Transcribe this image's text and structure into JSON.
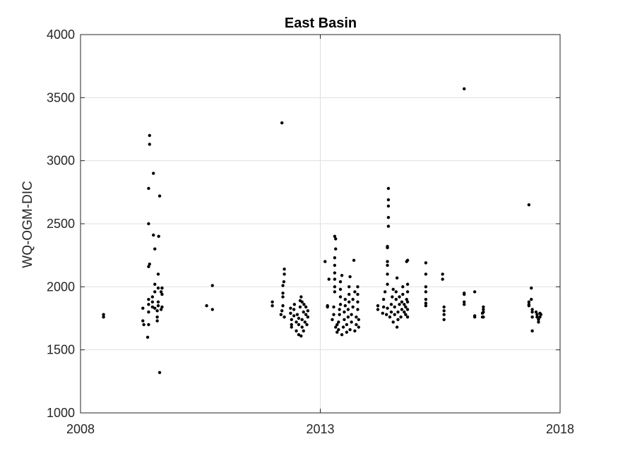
{
  "chart_data": {
    "type": "scatter",
    "title": "East Basin",
    "xlabel": "",
    "ylabel": "WQ-OGM-DIC",
    "xlim": [
      2008,
      2018
    ],
    "ylim": [
      1000,
      4000
    ],
    "xticks": [
      2008,
      2013,
      2018
    ],
    "yticks": [
      1000,
      1500,
      2000,
      2500,
      3000,
      3500,
      4000
    ],
    "grid": true,
    "marker_color": "#000000",
    "points": [
      [
        2008.48,
        1760
      ],
      [
        2008.48,
        1780
      ],
      [
        2009.3,
        1830
      ],
      [
        2009.3,
        1730
      ],
      [
        2009.32,
        1700
      ],
      [
        2009.4,
        1600
      ],
      [
        2009.42,
        1700
      ],
      [
        2009.42,
        1800
      ],
      [
        2009.42,
        1860
      ],
      [
        2009.42,
        1900
      ],
      [
        2009.42,
        2500
      ],
      [
        2009.42,
        2780
      ],
      [
        2009.42,
        2160
      ],
      [
        2009.44,
        2180
      ],
      [
        2009.44,
        3130
      ],
      [
        2009.44,
        3200
      ],
      [
        2009.5,
        1840
      ],
      [
        2009.5,
        1880
      ],
      [
        2009.5,
        1920
      ],
      [
        2009.52,
        2410
      ],
      [
        2009.52,
        2900
      ],
      [
        2009.55,
        1830
      ],
      [
        2009.55,
        1960
      ],
      [
        2009.55,
        2020
      ],
      [
        2009.55,
        2300
      ],
      [
        2009.6,
        1730
      ],
      [
        2009.6,
        1760
      ],
      [
        2009.6,
        1810
      ],
      [
        2009.62,
        1850
      ],
      [
        2009.62,
        1880
      ],
      [
        2009.62,
        1990
      ],
      [
        2009.62,
        2100
      ],
      [
        2009.63,
        2400
      ],
      [
        2009.65,
        2720
      ],
      [
        2009.65,
        1320
      ],
      [
        2009.68,
        1820
      ],
      [
        2009.68,
        1960
      ],
      [
        2009.7,
        1840
      ],
      [
        2009.7,
        1940
      ],
      [
        2009.7,
        1990
      ],
      [
        2009.7,
        1990
      ],
      [
        2010.63,
        1850
      ],
      [
        2010.75,
        1820
      ],
      [
        2010.75,
        2010
      ],
      [
        2012.0,
        1850
      ],
      [
        2012.0,
        1880
      ],
      [
        2012.2,
        3300
      ],
      [
        2012.18,
        1780
      ],
      [
        2012.2,
        1810
      ],
      [
        2012.22,
        1850
      ],
      [
        2012.22,
        1920
      ],
      [
        2012.22,
        1950
      ],
      [
        2012.22,
        2010
      ],
      [
        2012.24,
        2040
      ],
      [
        2012.25,
        2100
      ],
      [
        2012.25,
        2140
      ],
      [
        2012.25,
        1760
      ],
      [
        2012.38,
        1790
      ],
      [
        2012.38,
        1830
      ],
      [
        2012.4,
        1740
      ],
      [
        2012.4,
        1700
      ],
      [
        2012.4,
        1680
      ],
      [
        2012.45,
        1770
      ],
      [
        2012.45,
        1820
      ],
      [
        2012.46,
        1860
      ],
      [
        2012.5,
        1650
      ],
      [
        2012.5,
        1720
      ],
      [
        2012.52,
        1780
      ],
      [
        2012.55,
        1620
      ],
      [
        2012.55,
        1700
      ],
      [
        2012.55,
        1750
      ],
      [
        2012.58,
        1840
      ],
      [
        2012.58,
        1890
      ],
      [
        2012.6,
        1610
      ],
      [
        2012.62,
        1680
      ],
      [
        2012.62,
        1740
      ],
      [
        2012.65,
        1800
      ],
      [
        2012.65,
        1650
      ],
      [
        2012.68,
        1720
      ],
      [
        2012.7,
        1780
      ],
      [
        2012.72,
        1700
      ],
      [
        2012.74,
        1760
      ],
      [
        2012.74,
        1810
      ],
      [
        2012.6,
        1920
      ],
      [
        2012.62,
        1880
      ],
      [
        2012.66,
        1860
      ],
      [
        2012.7,
        1840
      ],
      [
        2013.1,
        2200
      ],
      [
        2013.15,
        1850
      ],
      [
        2013.15,
        1840
      ],
      [
        2013.18,
        2060
      ],
      [
        2013.25,
        1740
      ],
      [
        2013.28,
        1780
      ],
      [
        2013.28,
        1840
      ],
      [
        2013.3,
        1960
      ],
      [
        2013.3,
        2000
      ],
      [
        2013.3,
        2060
      ],
      [
        2013.3,
        2110
      ],
      [
        2013.3,
        2170
      ],
      [
        2013.3,
        2230
      ],
      [
        2013.3,
        2400
      ],
      [
        2013.32,
        2380
      ],
      [
        2013.32,
        2300
      ],
      [
        2013.32,
        1680
      ],
      [
        2013.35,
        1700
      ],
      [
        2013.35,
        1640
      ],
      [
        2013.38,
        1660
      ],
      [
        2013.38,
        1720
      ],
      [
        2013.4,
        1780
      ],
      [
        2013.4,
        1820
      ],
      [
        2013.42,
        1860
      ],
      [
        2013.42,
        1920
      ],
      [
        2013.42,
        1980
      ],
      [
        2013.42,
        2040
      ],
      [
        2013.45,
        2090
      ],
      [
        2013.45,
        1620
      ],
      [
        2013.48,
        1680
      ],
      [
        2013.5,
        1740
      ],
      [
        2013.5,
        1800
      ],
      [
        2013.52,
        1850
      ],
      [
        2013.52,
        1900
      ],
      [
        2013.55,
        1640
      ],
      [
        2013.55,
        1700
      ],
      [
        2013.58,
        1760
      ],
      [
        2013.58,
        1820
      ],
      [
        2013.6,
        1880
      ],
      [
        2013.6,
        1940
      ],
      [
        2013.6,
        2000
      ],
      [
        2013.62,
        2080
      ],
      [
        2013.62,
        1660
      ],
      [
        2013.65,
        1720
      ],
      [
        2013.65,
        1780
      ],
      [
        2013.68,
        1840
      ],
      [
        2013.68,
        1900
      ],
      [
        2013.7,
        2210
      ],
      [
        2013.72,
        1960
      ],
      [
        2013.72,
        1650
      ],
      [
        2013.75,
        1700
      ],
      [
        2013.75,
        1760
      ],
      [
        2013.78,
        1820
      ],
      [
        2013.78,
        1880
      ],
      [
        2013.78,
        1940
      ],
      [
        2013.78,
        2000
      ],
      [
        2013.8,
        1680
      ],
      [
        2013.8,
        1740
      ],
      [
        2014.2,
        1820
      ],
      [
        2014.2,
        1850
      ],
      [
        2014.3,
        1790
      ],
      [
        2014.32,
        1840
      ],
      [
        2014.32,
        1900
      ],
      [
        2014.35,
        1960
      ],
      [
        2014.38,
        1780
      ],
      [
        2014.4,
        1830
      ],
      [
        2014.4,
        2020
      ],
      [
        2014.4,
        2100
      ],
      [
        2014.4,
        2170
      ],
      [
        2014.4,
        2200
      ],
      [
        2014.4,
        2310
      ],
      [
        2014.4,
        2320
      ],
      [
        2014.42,
        2480
      ],
      [
        2014.42,
        2550
      ],
      [
        2014.42,
        2640
      ],
      [
        2014.42,
        2690
      ],
      [
        2014.42,
        2780
      ],
      [
        2014.45,
        1760
      ],
      [
        2014.48,
        1800
      ],
      [
        2014.48,
        1860
      ],
      [
        2014.5,
        1920
      ],
      [
        2014.52,
        1980
      ],
      [
        2014.52,
        1720
      ],
      [
        2014.55,
        1780
      ],
      [
        2014.55,
        1840
      ],
      [
        2014.58,
        1900
      ],
      [
        2014.58,
        1960
      ],
      [
        2014.6,
        1680
      ],
      [
        2014.6,
        2070
      ],
      [
        2014.62,
        1740
      ],
      [
        2014.62,
        1800
      ],
      [
        2014.65,
        1860
      ],
      [
        2014.65,
        1920
      ],
      [
        2014.68,
        1760
      ],
      [
        2014.7,
        1820
      ],
      [
        2014.7,
        1880
      ],
      [
        2014.72,
        1940
      ],
      [
        2014.72,
        2000
      ],
      [
        2014.75,
        1800
      ],
      [
        2014.75,
        1860
      ],
      [
        2014.78,
        1780
      ],
      [
        2014.78,
        1840
      ],
      [
        2014.8,
        1900
      ],
      [
        2014.8,
        2200
      ],
      [
        2014.82,
        2210
      ],
      [
        2014.82,
        1760
      ],
      [
        2014.82,
        1820
      ],
      [
        2014.82,
        1880
      ],
      [
        2014.82,
        1960
      ],
      [
        2014.82,
        2020
      ],
      [
        2015.2,
        2190
      ],
      [
        2015.2,
        2100
      ],
      [
        2015.2,
        2000
      ],
      [
        2015.2,
        1960
      ],
      [
        2015.2,
        1900
      ],
      [
        2015.2,
        1850
      ],
      [
        2015.2,
        1870
      ],
      [
        2015.55,
        2100
      ],
      [
        2015.55,
        2060
      ],
      [
        2015.58,
        1840
      ],
      [
        2015.58,
        1810
      ],
      [
        2015.58,
        1780
      ],
      [
        2015.58,
        1740
      ],
      [
        2016.0,
        1860
      ],
      [
        2016.0,
        1880
      ],
      [
        2016.0,
        1940
      ],
      [
        2016.0,
        1950
      ],
      [
        2016.0,
        3570
      ],
      [
        2016.22,
        1760
      ],
      [
        2016.22,
        1770
      ],
      [
        2016.22,
        1960
      ],
      [
        2016.38,
        1760
      ],
      [
        2016.38,
        1790
      ],
      [
        2016.4,
        1820
      ],
      [
        2016.4,
        1840
      ],
      [
        2016.4,
        1800
      ],
      [
        2016.4,
        1760
      ],
      [
        2017.35,
        2650
      ],
      [
        2017.35,
        1880
      ],
      [
        2017.35,
        1860
      ],
      [
        2017.35,
        1850
      ],
      [
        2017.4,
        1900
      ],
      [
        2017.4,
        1990
      ],
      [
        2017.42,
        1820
      ],
      [
        2017.42,
        1800
      ],
      [
        2017.42,
        1760
      ],
      [
        2017.42,
        1650
      ],
      [
        2017.5,
        1800
      ],
      [
        2017.52,
        1780
      ],
      [
        2017.52,
        1760
      ],
      [
        2017.55,
        1720
      ],
      [
        2017.55,
        1740
      ],
      [
        2017.58,
        1790
      ],
      [
        2017.58,
        1760
      ],
      [
        2017.6,
        1780
      ]
    ]
  }
}
